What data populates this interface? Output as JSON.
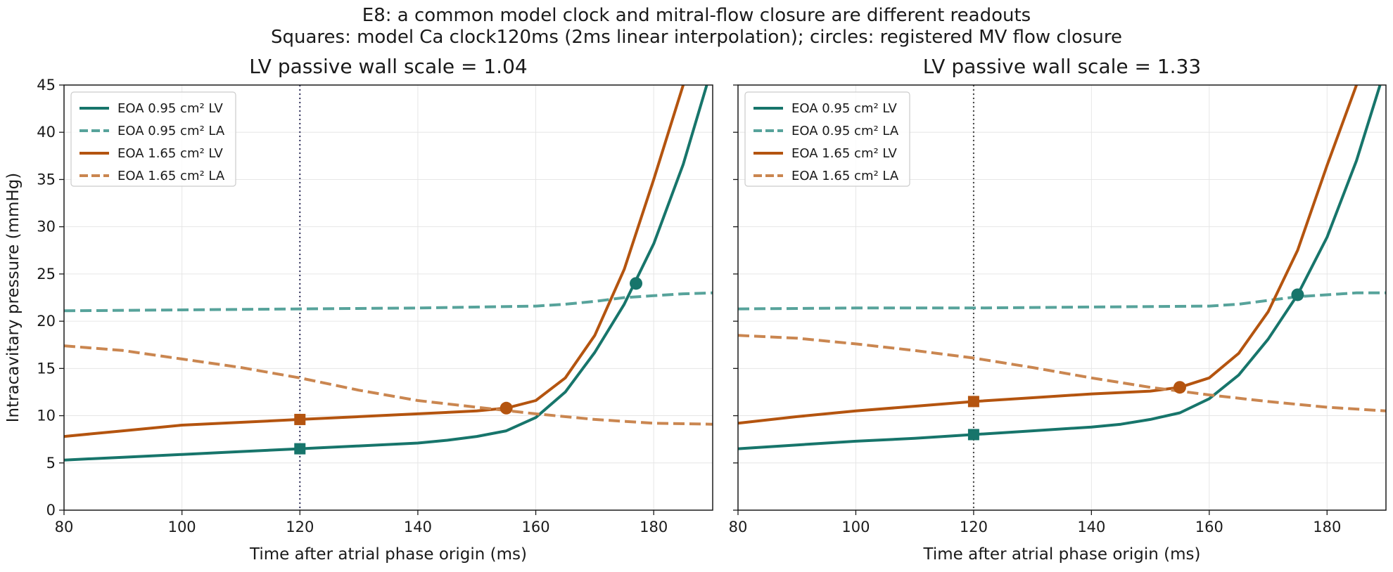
{
  "figure": {
    "title_line1": "E8: a common model clock and mitral-flow closure are different readouts",
    "title_line2": "Squares: model Ca clock120ms (2ms linear interpolation); circles: registered MV flow closure"
  },
  "colors": {
    "teal": "#17756b",
    "teal_dash": "#57a39b",
    "orange": "#b4540f",
    "orange_dash": "#ca8650",
    "vline": "#2d2d5a"
  },
  "chart_data": [
    {
      "type": "line",
      "title": "LV passive wall scale = 1.04",
      "xlabel": "Time after atrial phase origin (ms)",
      "ylabel": "Intracavitary pressure (mmHg)",
      "xlim": [
        80,
        190
      ],
      "ylim": [
        0,
        45
      ],
      "xticks": [
        80,
        100,
        120,
        140,
        160,
        180
      ],
      "yticks": [
        0,
        5,
        10,
        15,
        20,
        25,
        30,
        35,
        40,
        45
      ],
      "grid": true,
      "legend_position": "top-left",
      "clock_line_x": 120,
      "series": [
        {
          "name": "EOA 0.95 cm² LV",
          "color": "teal",
          "dashed": false,
          "x": [
            80,
            90,
            100,
            110,
            120,
            130,
            140,
            145,
            150,
            155,
            160,
            165,
            170,
            175,
            180,
            185,
            189
          ],
          "y": [
            5.3,
            5.6,
            5.9,
            6.2,
            6.5,
            6.8,
            7.1,
            7.4,
            7.8,
            8.4,
            9.8,
            12.5,
            16.7,
            21.8,
            28.2,
            36.6,
            45.0
          ]
        },
        {
          "name": "EOA 0.95 cm² LA",
          "color": "teal_dash",
          "dashed": true,
          "x": [
            80,
            100,
            120,
            140,
            160,
            165,
            170,
            175,
            180,
            185,
            190
          ],
          "y": [
            21.1,
            21.2,
            21.3,
            21.4,
            21.6,
            21.8,
            22.1,
            22.5,
            22.7,
            22.9,
            23.0
          ]
        },
        {
          "name": "EOA 1.65 cm² LV",
          "color": "orange",
          "dashed": false,
          "x": [
            80,
            90,
            100,
            110,
            120,
            130,
            140,
            150,
            155,
            160,
            165,
            170,
            175,
            180,
            185
          ],
          "y": [
            7.8,
            8.4,
            9.0,
            9.3,
            9.6,
            9.9,
            10.2,
            10.5,
            10.8,
            11.6,
            14.0,
            18.5,
            25.5,
            35.0,
            45.0
          ]
        },
        {
          "name": "EOA 1.65 cm² LA",
          "color": "orange_dash",
          "dashed": true,
          "x": [
            80,
            90,
            100,
            110,
            120,
            130,
            140,
            150,
            160,
            170,
            180,
            190
          ],
          "y": [
            17.4,
            16.9,
            16.0,
            15.1,
            14.0,
            12.7,
            11.6,
            10.9,
            10.2,
            9.6,
            9.2,
            9.1
          ]
        }
      ],
      "markers": [
        {
          "shape": "square",
          "x": 120,
          "y": 6.5,
          "color": "teal"
        },
        {
          "shape": "square",
          "x": 120,
          "y": 9.6,
          "color": "orange"
        },
        {
          "shape": "circle",
          "x": 177,
          "y": 24.0,
          "color": "teal"
        },
        {
          "shape": "circle",
          "x": 155,
          "y": 10.8,
          "color": "orange"
        }
      ]
    },
    {
      "type": "line",
      "title": "LV passive wall scale = 1.33",
      "xlabel": "Time after atrial phase origin (ms)",
      "ylabel": "",
      "xlim": [
        80,
        190
      ],
      "ylim": [
        0,
        45
      ],
      "xticks": [
        80,
        100,
        120,
        140,
        160,
        180
      ],
      "yticks": [
        0,
        5,
        10,
        15,
        20,
        25,
        30,
        35,
        40,
        45
      ],
      "grid": true,
      "legend_position": "top-left",
      "clock_line_x": 120,
      "series": [
        {
          "name": "EOA 0.95 cm² LV",
          "color": "teal",
          "dashed": false,
          "x": [
            80,
            90,
            100,
            110,
            120,
            130,
            140,
            145,
            150,
            155,
            160,
            165,
            170,
            175,
            180,
            185,
            189
          ],
          "y": [
            6.5,
            6.9,
            7.3,
            7.6,
            8.0,
            8.4,
            8.8,
            9.1,
            9.6,
            10.3,
            11.8,
            14.3,
            18.1,
            22.8,
            28.9,
            37.0,
            45.0
          ]
        },
        {
          "name": "EOA 0.95 cm² LA",
          "color": "teal_dash",
          "dashed": true,
          "x": [
            80,
            100,
            120,
            140,
            160,
            165,
            170,
            175,
            180,
            185,
            190
          ],
          "y": [
            21.3,
            21.4,
            21.4,
            21.5,
            21.6,
            21.8,
            22.2,
            22.6,
            22.8,
            23.0,
            23.0
          ]
        },
        {
          "name": "EOA 1.65 cm² LV",
          "color": "orange",
          "dashed": false,
          "x": [
            80,
            90,
            100,
            110,
            120,
            130,
            140,
            150,
            155,
            160,
            165,
            170,
            175,
            180,
            185
          ],
          "y": [
            9.2,
            9.9,
            10.5,
            11.0,
            11.5,
            11.9,
            12.3,
            12.6,
            13.0,
            14.0,
            16.6,
            21.0,
            27.5,
            36.5,
            45.0
          ]
        },
        {
          "name": "EOA 1.65 cm² LA",
          "color": "orange_dash",
          "dashed": true,
          "x": [
            80,
            90,
            100,
            110,
            120,
            130,
            140,
            150,
            160,
            170,
            180,
            190
          ],
          "y": [
            18.5,
            18.2,
            17.6,
            16.9,
            16.1,
            15.1,
            14.0,
            13.0,
            12.2,
            11.5,
            10.9,
            10.5
          ]
        }
      ],
      "markers": [
        {
          "shape": "square",
          "x": 120,
          "y": 8.0,
          "color": "teal"
        },
        {
          "shape": "square",
          "x": 120,
          "y": 11.5,
          "color": "orange"
        },
        {
          "shape": "circle",
          "x": 175,
          "y": 22.8,
          "color": "teal"
        },
        {
          "shape": "circle",
          "x": 155,
          "y": 13.0,
          "color": "orange"
        }
      ]
    }
  ]
}
